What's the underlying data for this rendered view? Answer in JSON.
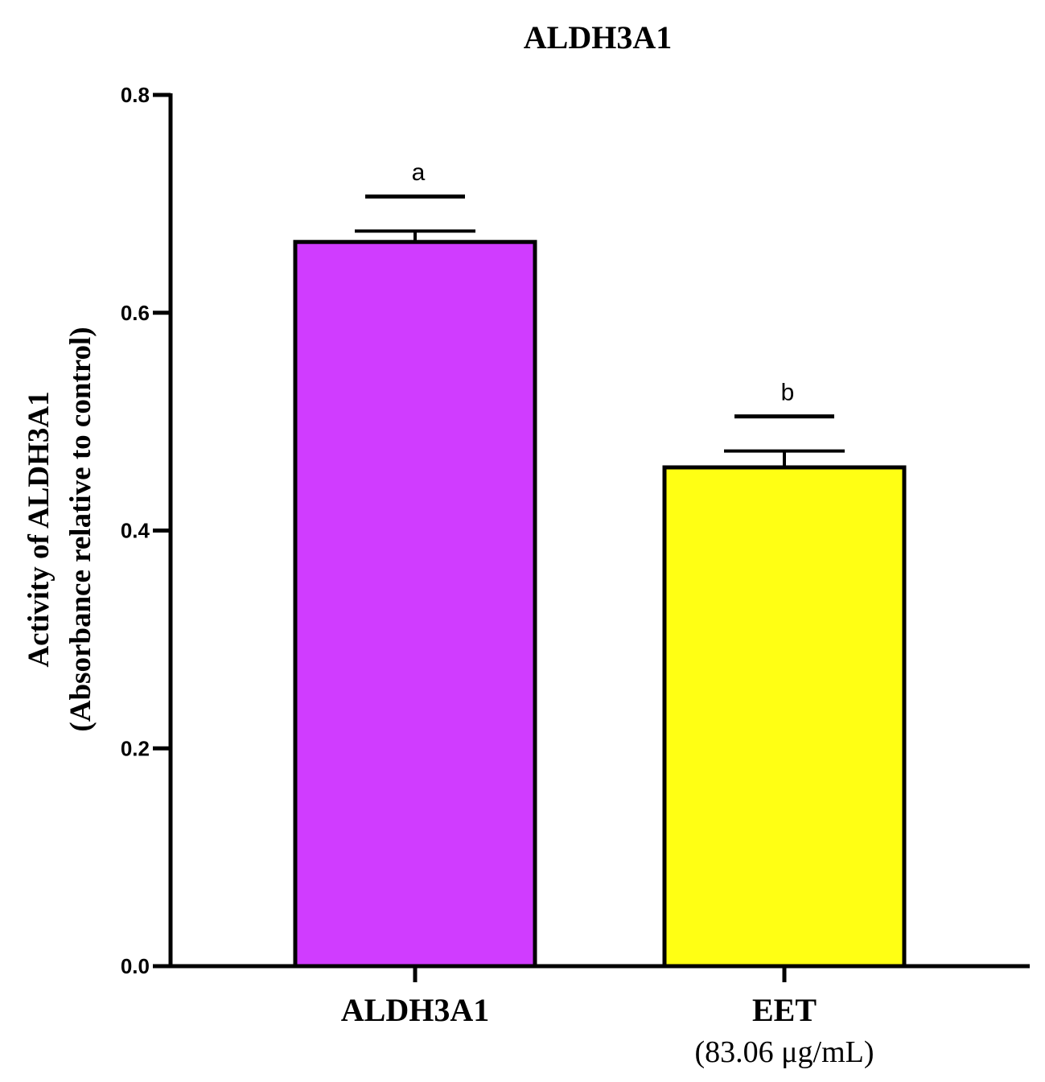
{
  "chart_data": {
    "type": "bar",
    "title": "ALDH3A1",
    "ylabel_lines": [
      "Activity of ALDH3A1",
      "(Absorbance relative to control)"
    ],
    "xlabel": "",
    "ylim": [
      0,
      0.8
    ],
    "yticks": [
      "0.0",
      "0.2",
      "0.4",
      "0.6",
      "0.8"
    ],
    "grid": false,
    "legend": "none",
    "bars": [
      {
        "category": "ALDH3A1",
        "sublabel": "",
        "value": 0.665,
        "error": 0.01,
        "significance": "a",
        "color": "#d03cff"
      },
      {
        "category": "EET",
        "sublabel": "(83.06 μg/mL)",
        "value": 0.458,
        "error": 0.015,
        "significance": "b",
        "color": "#ffff14"
      }
    ]
  }
}
